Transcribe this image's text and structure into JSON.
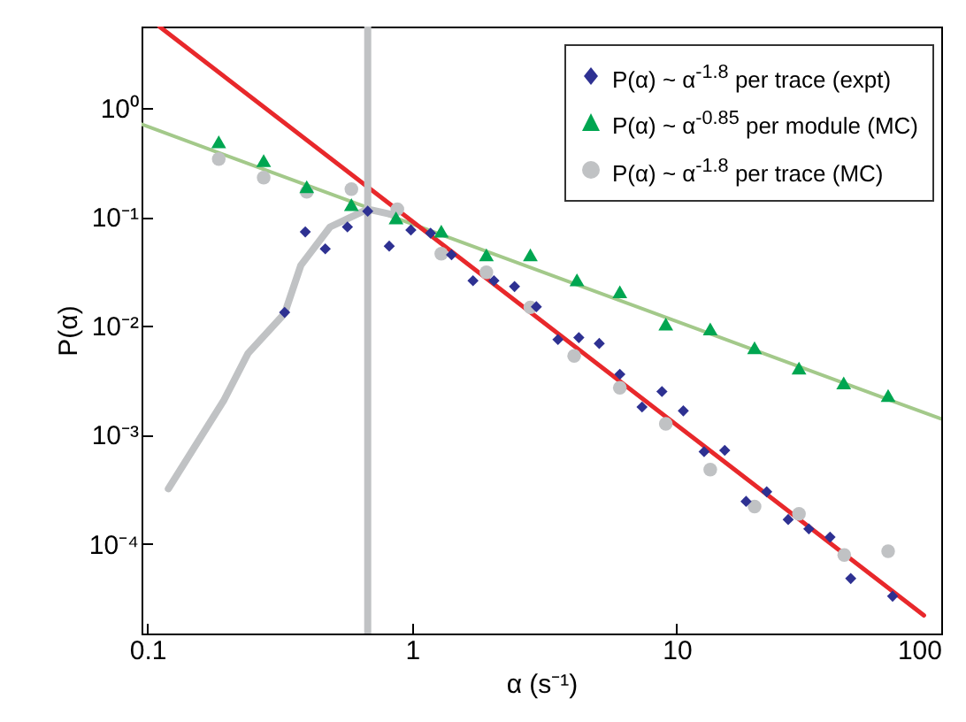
{
  "chart_data": {
    "type": "scatter",
    "xlabel": "α (s⁻¹)",
    "ylabel": "P(α)",
    "log": "xy",
    "grid": false,
    "legend": "top right",
    "xlim": [
      0.095,
      100
    ],
    "xticks": [
      0.1,
      1,
      10,
      100
    ],
    "ylim": [
      1.5e-05,
      5.6
    ],
    "yticks": [
      {
        "value": 0.0001,
        "label": "10⁻⁴"
      },
      {
        "value": 0.001,
        "label": "10⁻³"
      },
      {
        "value": 0.01,
        "label": "10⁻²"
      },
      {
        "value": 0.1,
        "label": "10⁻¹"
      },
      {
        "value": 1,
        "label": "10⁰"
      }
    ],
    "ref_lines": [
      {
        "axis": "x",
        "value": 0.68,
        "color": "#c0c2c4"
      }
    ],
    "series": [
      {
        "type": "line",
        "color": "#a3c98a",
        "x": [
          0.095,
          100
        ],
        "values": [
          0.71,
          0.0014
        ]
      },
      {
        "type": "line",
        "color": "#c0c2c4",
        "x": [
          0.12,
          0.195,
          0.24,
          0.33,
          0.38,
          0.49,
          0.68,
          0.86
        ],
        "values": [
          0.00032,
          0.0021,
          0.0056,
          0.013,
          0.036,
          0.081,
          0.118,
          0.104
        ]
      },
      {
        "type": "line",
        "color": "#e8282b",
        "x": [
          0.111,
          86
        ],
        "values": [
          5.6,
          2.2e-05
        ]
      },
      {
        "name": "P(α) ~ α$^{-1.8}$ per trace (expt)",
        "marker": "diamond",
        "color": "#2e3192",
        "x": [
          0.33,
          0.395,
          0.47,
          0.57,
          0.68,
          0.82,
          0.99,
          1.175,
          1.41,
          1.7,
          2.04,
          2.44,
          2.95,
          3.56,
          4.27,
          5.1,
          6.1,
          7.4,
          8.8,
          10.6,
          12.7,
          15.2,
          18.3,
          21.9,
          26.4,
          31.6,
          38,
          45.5,
          65.5
        ],
        "values": [
          0.0133,
          0.073,
          0.051,
          0.081,
          0.113,
          0.054,
          0.076,
          0.071,
          0.045,
          0.026,
          0.026,
          0.023,
          0.015,
          0.0075,
          0.0078,
          0.0069,
          0.0036,
          0.0018,
          0.0025,
          0.00166,
          0.0007,
          0.00072,
          0.000245,
          0.0003,
          0.000167,
          0.000137,
          0.000115,
          4.8e-05,
          3.3e-05
        ]
      },
      {
        "name": "P(α) ~ α$^{-0.85}$ per module (MC)",
        "marker": "triangle",
        "color": "#00a651",
        "x": [
          0.186,
          0.275,
          0.4,
          0.59,
          0.87,
          1.29,
          1.91,
          2.8,
          4.2,
          6.1,
          9.1,
          13.4,
          19.7,
          29,
          42.8,
          63
        ],
        "values": [
          0.49,
          0.33,
          0.19,
          0.13,
          0.098,
          0.074,
          0.045,
          0.045,
          0.0265,
          0.0206,
          0.0104,
          0.0094,
          0.0063,
          0.0041,
          0.003,
          0.0023
        ]
      },
      {
        "name": "P(α) ~ α$^{-1.8}$ per trace (MC)",
        "marker": "circle",
        "color": "#c0c2c4",
        "x": [
          0.186,
          0.275,
          0.4,
          0.59,
          0.88,
          1.29,
          1.91,
          2.8,
          4.1,
          6.1,
          9.1,
          13.4,
          19.7,
          29,
          43,
          63
        ],
        "values": [
          0.34,
          0.23,
          0.17,
          0.18,
          0.118,
          0.046,
          0.031,
          0.0148,
          0.0053,
          0.0027,
          0.00126,
          0.00048,
          0.00022,
          0.000188,
          7.9e-05,
          8.55e-05
        ]
      }
    ]
  }
}
